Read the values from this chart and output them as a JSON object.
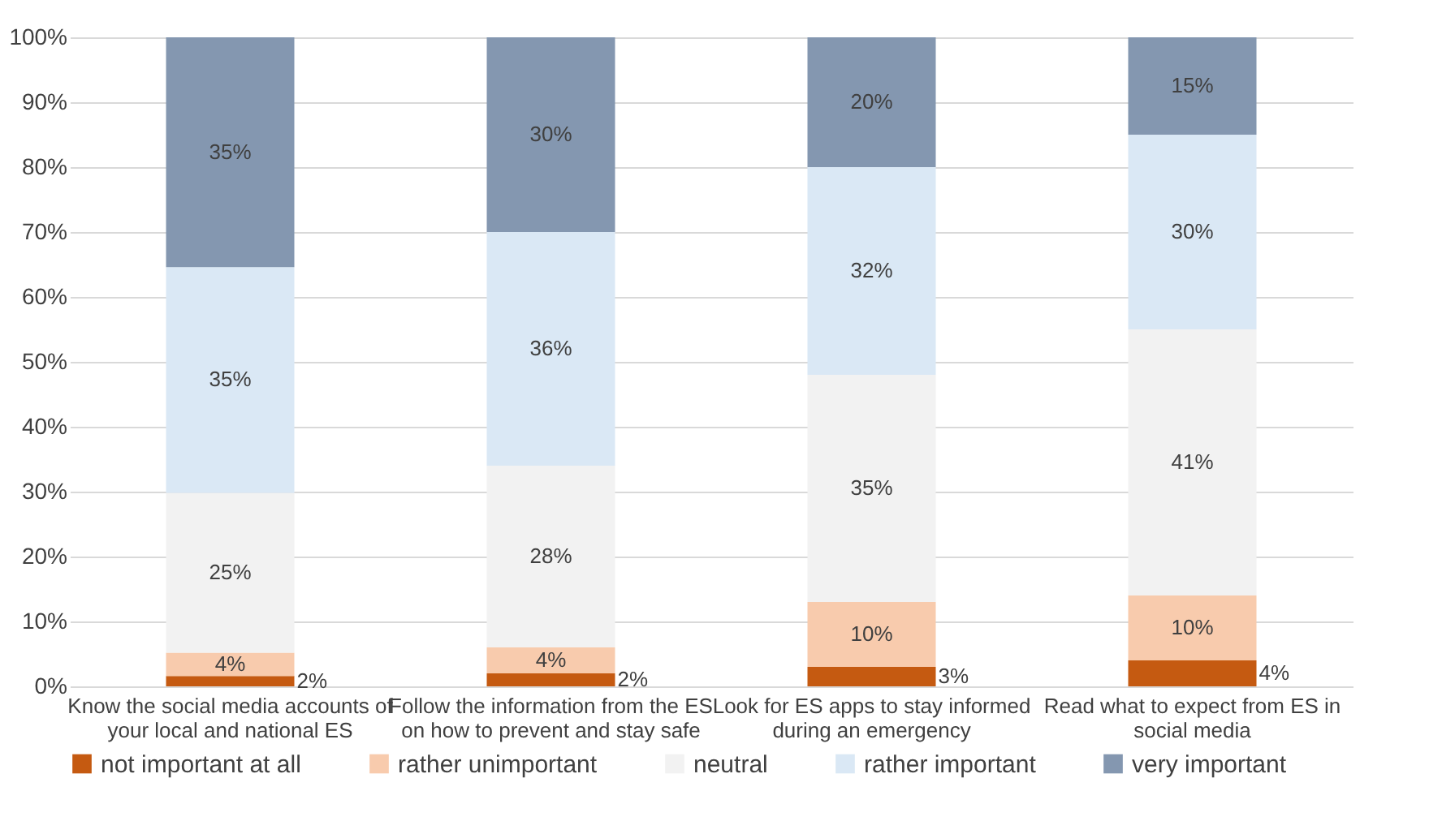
{
  "chart_data": {
    "type": "bar",
    "stacked": true,
    "categories": [
      "Know the social media accounts of your local and national ES",
      "Follow the information from the ES on how to prevent and stay safe",
      "Look for ES apps to stay informed during an emergency",
      "Read what to expect from ES in social media"
    ],
    "series": [
      {
        "name": "not important at all",
        "color": "#c55a11",
        "values": [
          1.6,
          2,
          3,
          4
        ],
        "value_labels": [
          "2%",
          "2%",
          "3%",
          "4%"
        ]
      },
      {
        "name": "rather unimportant",
        "color": "#f8cbad",
        "values": [
          3.6,
          4,
          10,
          10
        ],
        "value_labels": [
          "4%",
          "4%",
          "10%",
          "10%"
        ]
      },
      {
        "name": "neutral",
        "color": "#f2f2f2",
        "values": [
          24.6,
          28,
          35,
          41
        ],
        "value_labels": [
          "25%",
          "28%",
          "35%",
          "41%"
        ]
      },
      {
        "name": "rather important",
        "color": "#dae8f5",
        "values": [
          34.8,
          36,
          32,
          30
        ],
        "value_labels": [
          "35%",
          "36%",
          "32%",
          "30%"
        ]
      },
      {
        "name": "very important",
        "color": "#8497b0",
        "values": [
          35.4,
          30,
          20,
          15
        ],
        "value_labels": [
          "35%",
          "30%",
          "20%",
          "15%"
        ]
      }
    ],
    "ylim": [
      0,
      100
    ],
    "yticks": [
      {
        "value": 0,
        "label": "0%"
      },
      {
        "value": 10,
        "label": "10%"
      },
      {
        "value": 20,
        "label": "20%"
      },
      {
        "value": 30,
        "label": "30%"
      },
      {
        "value": 40,
        "label": "40%"
      },
      {
        "value": 50,
        "label": "50%"
      },
      {
        "value": 60,
        "label": "60%"
      },
      {
        "value": 70,
        "label": "70%"
      },
      {
        "value": 80,
        "label": "80%"
      },
      {
        "value": 90,
        "label": "90%"
      },
      {
        "value": 100,
        "label": "100%"
      }
    ],
    "grid": "y",
    "legend": "bottom"
  }
}
